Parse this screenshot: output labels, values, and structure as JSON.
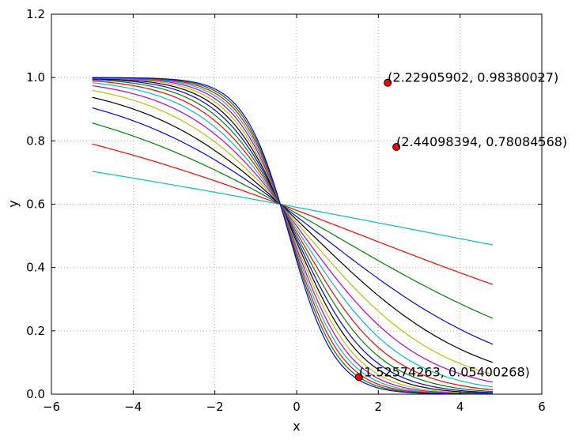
{
  "chart_data": {
    "type": "line",
    "title": "",
    "xlabel": "x",
    "ylabel": "y",
    "xlim": [
      -6,
      6
    ],
    "ylim": [
      0.0,
      1.2
    ],
    "xticks": [
      -6,
      -4,
      -2,
      0,
      2,
      4,
      6
    ],
    "xtick_labels": [
      "−6",
      "−4",
      "−2",
      "0",
      "2",
      "4",
      "6"
    ],
    "yticks": [
      0.0,
      0.2,
      0.4,
      0.6,
      0.8,
      1.0,
      1.2
    ],
    "ytick_labels": [
      "0.0",
      "0.2",
      "0.4",
      "0.6",
      "0.8",
      "1.0",
      "1.2"
    ],
    "grid": true,
    "x_range": [
      -5,
      4.8
    ],
    "curve_form": "1 / (1 + exp(k * (x + 0.4) - 0.405))",
    "series": [
      {
        "k": 0.1,
        "color": "#00bfbf"
      },
      {
        "k": 0.2,
        "color": "#ff0000"
      },
      {
        "k": 0.3,
        "color": "#008000"
      },
      {
        "k": 0.4,
        "color": "#0000ff"
      },
      {
        "k": 0.5,
        "color": "#000000"
      },
      {
        "k": 0.6,
        "color": "#bfbf00"
      },
      {
        "k": 0.7,
        "color": "#bf00bf"
      },
      {
        "k": 0.8,
        "color": "#00bfbf"
      },
      {
        "k": 0.9,
        "color": "#ff0000"
      },
      {
        "k": 1.0,
        "color": "#008000"
      },
      {
        "k": 1.1,
        "color": "#0000ff"
      },
      {
        "k": 1.2,
        "color": "#000000"
      },
      {
        "k": 1.3,
        "color": "#bfbf00"
      },
      {
        "k": 1.4,
        "color": "#bf00bf"
      },
      {
        "k": 1.5,
        "color": "#00bfbf"
      },
      {
        "k": 1.6,
        "color": "#ff0000"
      },
      {
        "k": 1.7,
        "color": "#008000"
      },
      {
        "k": 1.8,
        "color": "#0000ff"
      }
    ],
    "points": [
      {
        "x": 2.22905902,
        "y": 0.98380027,
        "label": "(2.22905902, 0.98380027)"
      },
      {
        "x": 2.44098394,
        "y": 0.78084568,
        "label": "(2.44098394, 0.78084568)"
      },
      {
        "x": 1.52574263,
        "y": 0.05400268,
        "label": "(1.52574263, 0.05400268)"
      }
    ],
    "point_color": "#ff0000"
  }
}
